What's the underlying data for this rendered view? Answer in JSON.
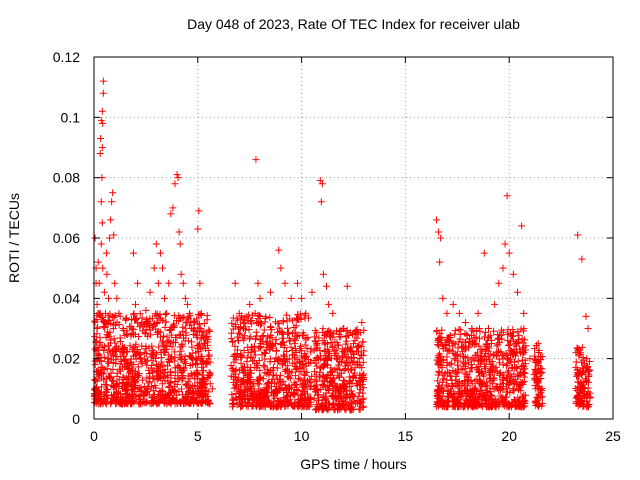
{
  "chart_data": {
    "type": "scatter",
    "title": "Day 048 of 2023, Rate Of TEC Index for receiver ulab",
    "xlabel": "GPS time / hours",
    "ylabel": "ROTI / TECUs",
    "xlim": [
      0,
      25
    ],
    "ylim": [
      0,
      0.12
    ],
    "x_ticks": [
      "0",
      "5",
      "10",
      "15",
      "20",
      "25"
    ],
    "y_ticks": [
      "0",
      "0.02",
      "0.04",
      "0.06",
      "0.08",
      "0.1",
      "0.12"
    ],
    "x_tick_values": [
      0,
      5,
      10,
      15,
      20,
      25
    ],
    "y_tick_values": [
      0,
      0.02,
      0.04,
      0.06,
      0.08,
      0.1,
      0.12
    ],
    "grid": true,
    "marker": "plus",
    "marker_color": "#ff0000",
    "series": [
      {
        "points": [
          [
            0.05,
            0.01
          ],
          [
            0.1,
            0.02
          ],
          [
            0.15,
            0.03
          ],
          [
            0.1,
            0.045
          ],
          [
            0.05,
            0.06
          ],
          [
            0.1,
            0.05
          ],
          [
            0.15,
            0.038
          ],
          [
            0.2,
            0.052
          ],
          [
            0.25,
            0.045
          ],
          [
            0.3,
            0.035
          ],
          [
            0.3,
            0.088
          ],
          [
            0.32,
            0.093
          ],
          [
            0.35,
            0.099
          ],
          [
            0.4,
            0.102
          ],
          [
            0.45,
            0.112
          ],
          [
            0.45,
            0.108
          ],
          [
            0.42,
            0.098
          ],
          [
            0.4,
            0.09
          ],
          [
            0.38,
            0.08
          ],
          [
            0.35,
            0.072
          ],
          [
            0.4,
            0.065
          ],
          [
            0.35,
            0.058
          ],
          [
            0.42,
            0.05
          ],
          [
            0.5,
            0.042
          ],
          [
            0.55,
            0.035
          ],
          [
            0.6,
            0.055
          ],
          [
            0.62,
            0.048
          ],
          [
            0.7,
            0.04
          ],
          [
            0.75,
            0.06
          ],
          [
            0.8,
            0.066
          ],
          [
            0.85,
            0.072
          ],
          [
            0.9,
            0.075
          ],
          [
            0.95,
            0.061
          ],
          [
            1.0,
            0.045
          ],
          [
            1.1,
            0.04
          ],
          [
            1.2,
            0.035
          ],
          [
            1.4,
            0.03
          ],
          [
            1.6,
            0.028
          ],
          [
            1.8,
            0.033
          ],
          [
            2.0,
            0.038
          ],
          [
            1.9,
            0.055
          ],
          [
            2.1,
            0.045
          ],
          [
            2.3,
            0.032
          ],
          [
            2.5,
            0.036
          ],
          [
            2.7,
            0.042
          ],
          [
            2.9,
            0.05
          ],
          [
            3.0,
            0.058
          ],
          [
            3.1,
            0.045
          ],
          [
            3.2,
            0.055
          ],
          [
            3.3,
            0.05
          ],
          [
            3.4,
            0.04
          ],
          [
            3.5,
            0.035
          ],
          [
            3.6,
            0.045
          ],
          [
            3.7,
            0.068
          ],
          [
            3.8,
            0.07
          ],
          [
            3.9,
            0.078
          ],
          [
            4.0,
            0.081
          ],
          [
            4.05,
            0.08
          ],
          [
            4.1,
            0.062
          ],
          [
            4.15,
            0.058
          ],
          [
            4.2,
            0.048
          ],
          [
            4.3,
            0.045
          ],
          [
            4.4,
            0.04
          ],
          [
            4.5,
            0.038
          ],
          [
            4.6,
            0.035
          ],
          [
            4.7,
            0.03
          ],
          [
            4.8,
            0.028
          ],
          [
            5.0,
            0.063
          ],
          [
            5.05,
            0.069
          ],
          [
            5.1,
            0.045
          ],
          [
            5.3,
            0.025
          ],
          [
            5.5,
            0.02
          ],
          [
            5.6,
            0.015
          ],
          [
            5.7,
            0.01
          ],
          [
            6.8,
            0.045
          ],
          [
            7.0,
            0.035
          ],
          [
            7.2,
            0.03
          ],
          [
            7.5,
            0.038
          ],
          [
            7.8,
            0.086
          ],
          [
            7.9,
            0.045
          ],
          [
            8.0,
            0.04
          ],
          [
            8.5,
            0.042
          ],
          [
            8.9,
            0.056
          ],
          [
            9.0,
            0.05
          ],
          [
            9.2,
            0.045
          ],
          [
            9.5,
            0.04
          ],
          [
            9.8,
            0.045
          ],
          [
            10.0,
            0.04
          ],
          [
            10.2,
            0.035
          ],
          [
            10.5,
            0.042
          ],
          [
            10.9,
            0.079
          ],
          [
            10.95,
            0.072
          ],
          [
            11.0,
            0.078
          ],
          [
            11.05,
            0.048
          ],
          [
            11.2,
            0.044
          ],
          [
            11.3,
            0.038
          ],
          [
            11.5,
            0.035
          ],
          [
            11.8,
            0.028
          ],
          [
            12.0,
            0.03
          ],
          [
            12.2,
            0.044
          ],
          [
            12.5,
            0.025
          ],
          [
            12.8,
            0.02
          ],
          [
            12.9,
            0.032
          ],
          [
            16.5,
            0.066
          ],
          [
            16.6,
            0.062
          ],
          [
            16.7,
            0.06
          ],
          [
            16.65,
            0.052
          ],
          [
            16.8,
            0.04
          ],
          [
            17.0,
            0.035
          ],
          [
            17.3,
            0.038
          ],
          [
            17.6,
            0.035
          ],
          [
            17.9,
            0.032
          ],
          [
            18.2,
            0.03
          ],
          [
            18.5,
            0.035
          ],
          [
            18.8,
            0.055
          ],
          [
            19.0,
            0.03
          ],
          [
            19.3,
            0.038
          ],
          [
            19.5,
            0.045
          ],
          [
            19.7,
            0.05
          ],
          [
            19.8,
            0.058
          ],
          [
            19.9,
            0.074
          ],
          [
            20.0,
            0.055
          ],
          [
            20.2,
            0.048
          ],
          [
            20.4,
            0.042
          ],
          [
            20.6,
            0.064
          ],
          [
            20.7,
            0.035
          ],
          [
            21.0,
            0.02
          ],
          [
            21.4,
            0.025
          ],
          [
            21.5,
            0.015
          ],
          [
            23.3,
            0.061
          ],
          [
            23.5,
            0.053
          ],
          [
            23.7,
            0.034
          ],
          [
            23.8,
            0.03
          ]
        ],
        "dense_clusters": [
          {
            "x": [
              0.0,
              5.6
            ],
            "y": [
              0.005,
              0.035
            ]
          },
          {
            "x": [
              6.6,
              10.5
            ],
            "y": [
              0.004,
              0.035
            ]
          },
          {
            "x": [
              10.6,
              13.0
            ],
            "y": [
              0.003,
              0.03
            ]
          },
          {
            "x": [
              16.5,
              20.8
            ],
            "y": [
              0.004,
              0.03
            ]
          },
          {
            "x": [
              21.2,
              21.6
            ],
            "y": [
              0.004,
              0.025
            ]
          },
          {
            "x": [
              23.2,
              23.9
            ],
            "y": [
              0.004,
              0.024
            ]
          }
        ]
      }
    ]
  }
}
